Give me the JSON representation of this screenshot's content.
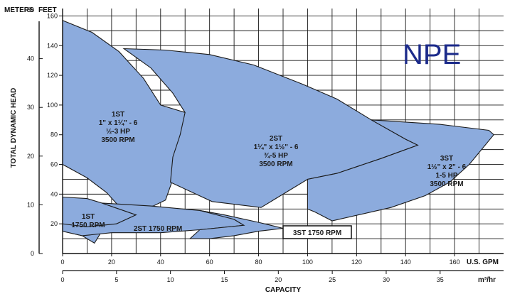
{
  "brand": "NPE",
  "colors": {
    "region_fill": "#8cabdd",
    "region_stroke": "#1a1a1a",
    "grid": "#1a1a1a",
    "brand": "#1b2a8a"
  },
  "chart_data": {
    "type": "area",
    "title": "",
    "xlabel": "CAPACITY",
    "ylabel": "TOTAL DYNAMIC HEAD",
    "x_primary_unit": "U.S. GPM",
    "x_secondary_unit": "m³/hr",
    "y_primary_unit": "FEET",
    "y_secondary_unit": "METERS",
    "xlim": [
      0,
      180
    ],
    "ylim": [
      0,
      165
    ],
    "grid": true,
    "x_ticks": [
      "0",
      "20",
      "40",
      "60",
      "80",
      "100",
      "120",
      "140",
      "160"
    ],
    "x_ticks_secondary": [
      "0",
      "5",
      "10",
      "15",
      "20",
      "25",
      "30",
      "35"
    ],
    "y_ticks": [
      "20",
      "40",
      "60",
      "80",
      "100",
      "120",
      "140",
      "160"
    ],
    "y_ticks_secondary": [
      "0",
      "10",
      "20",
      "30",
      "40",
      "50"
    ],
    "regions": [
      {
        "name": "1ST",
        "label_lines": [
          "1ST",
          "1\" x 1¼\" - 6",
          "½-3 HP",
          "3500 RPM"
        ],
        "boundary": [
          [
            0,
            157
          ],
          [
            12,
            149
          ],
          [
            23,
            136
          ],
          [
            33,
            118
          ],
          [
            40,
            100
          ],
          [
            50,
            95
          ],
          [
            48,
            70
          ],
          [
            45,
            50
          ],
          [
            42,
            36
          ],
          [
            37,
            32
          ],
          [
            30,
            30
          ],
          [
            24,
            30
          ],
          [
            18,
            41
          ],
          [
            10,
            51
          ],
          [
            0,
            60
          ]
        ]
      },
      {
        "name": "2ST",
        "label_lines": [
          "2ST",
          "1¼\" x 1½\" - 6",
          "¾-5 HP",
          "3500 RPM"
        ],
        "boundary": [
          [
            25,
            138
          ],
          [
            42,
            137
          ],
          [
            60,
            134
          ],
          [
            78,
            127
          ],
          [
            98,
            114
          ],
          [
            112,
            104
          ],
          [
            126,
            90
          ],
          [
            140,
            77
          ],
          [
            145,
            73
          ],
          [
            130,
            64
          ],
          [
            112,
            54
          ],
          [
            100,
            50
          ],
          [
            81,
            31
          ],
          [
            61,
            35
          ],
          [
            44,
            48
          ],
          [
            45,
            65
          ],
          [
            48,
            80
          ],
          [
            50,
            95
          ],
          [
            45,
            108
          ],
          [
            36,
            125
          ]
        ]
      },
      {
        "name": "3ST",
        "label_lines": [
          "3ST",
          "1½\" x 2\" - 6",
          "1-5 HP",
          "3500 RPM"
        ],
        "boundary": [
          [
            126,
            90
          ],
          [
            154,
            87
          ],
          [
            174,
            83
          ],
          [
            176,
            80
          ],
          [
            166,
            60
          ],
          [
            158,
            48
          ],
          [
            148,
            39
          ],
          [
            134,
            31
          ],
          [
            110,
            22
          ],
          [
            103,
            28
          ],
          [
            100,
            30
          ],
          [
            100,
            50
          ],
          [
            112,
            54
          ],
          [
            130,
            64
          ],
          [
            145,
            73
          ],
          [
            140,
            77
          ]
        ]
      },
      {
        "name": "1ST 1750 RPM",
        "label_lines": [
          "1ST",
          "1750 RPM"
        ],
        "boundary": [
          [
            0,
            38
          ],
          [
            10,
            37
          ],
          [
            16,
            34
          ],
          [
            30,
            26
          ],
          [
            22,
            20
          ],
          [
            16,
            15
          ],
          [
            13,
            7
          ],
          [
            8,
            12
          ],
          [
            0,
            15
          ]
        ]
      },
      {
        "name": "2ST 1750 RPM",
        "label_lines": [
          "2ST 1750 RPM"
        ],
        "boundary": [
          [
            16,
            34
          ],
          [
            36,
            32
          ],
          [
            56,
            29
          ],
          [
            66,
            26
          ],
          [
            70,
            23
          ],
          [
            74,
            19
          ],
          [
            56,
            16
          ],
          [
            40,
            14
          ],
          [
            30,
            14
          ],
          [
            20,
            14
          ],
          [
            8,
            12
          ],
          [
            0,
            15
          ],
          [
            0,
            20
          ],
          [
            10,
            18
          ],
          [
            22,
            20
          ],
          [
            30,
            26
          ]
        ]
      },
      {
        "name": "3ST 1750 RPM",
        "label_lines": [
          "3ST 1750 RPM"
        ],
        "boundary": [
          [
            56,
            29
          ],
          [
            66,
            26
          ],
          [
            80,
            21
          ],
          [
            90,
            17
          ],
          [
            80,
            15
          ],
          [
            70,
            12
          ],
          [
            60,
            10
          ],
          [
            52,
            10
          ],
          [
            56,
            16
          ],
          [
            74,
            19
          ],
          [
            70,
            23
          ]
        ]
      }
    ]
  },
  "labels": {
    "y_units_primary": "FEET",
    "y_units_secondary": "METERS",
    "x_units_primary": "U.S. GPM",
    "x_units_secondary": "m³/hr",
    "xlabel": "CAPACITY",
    "ylabel": "TOTAL DYNAMIC HEAD",
    "st3_1750": "3ST 1750 RPM"
  }
}
